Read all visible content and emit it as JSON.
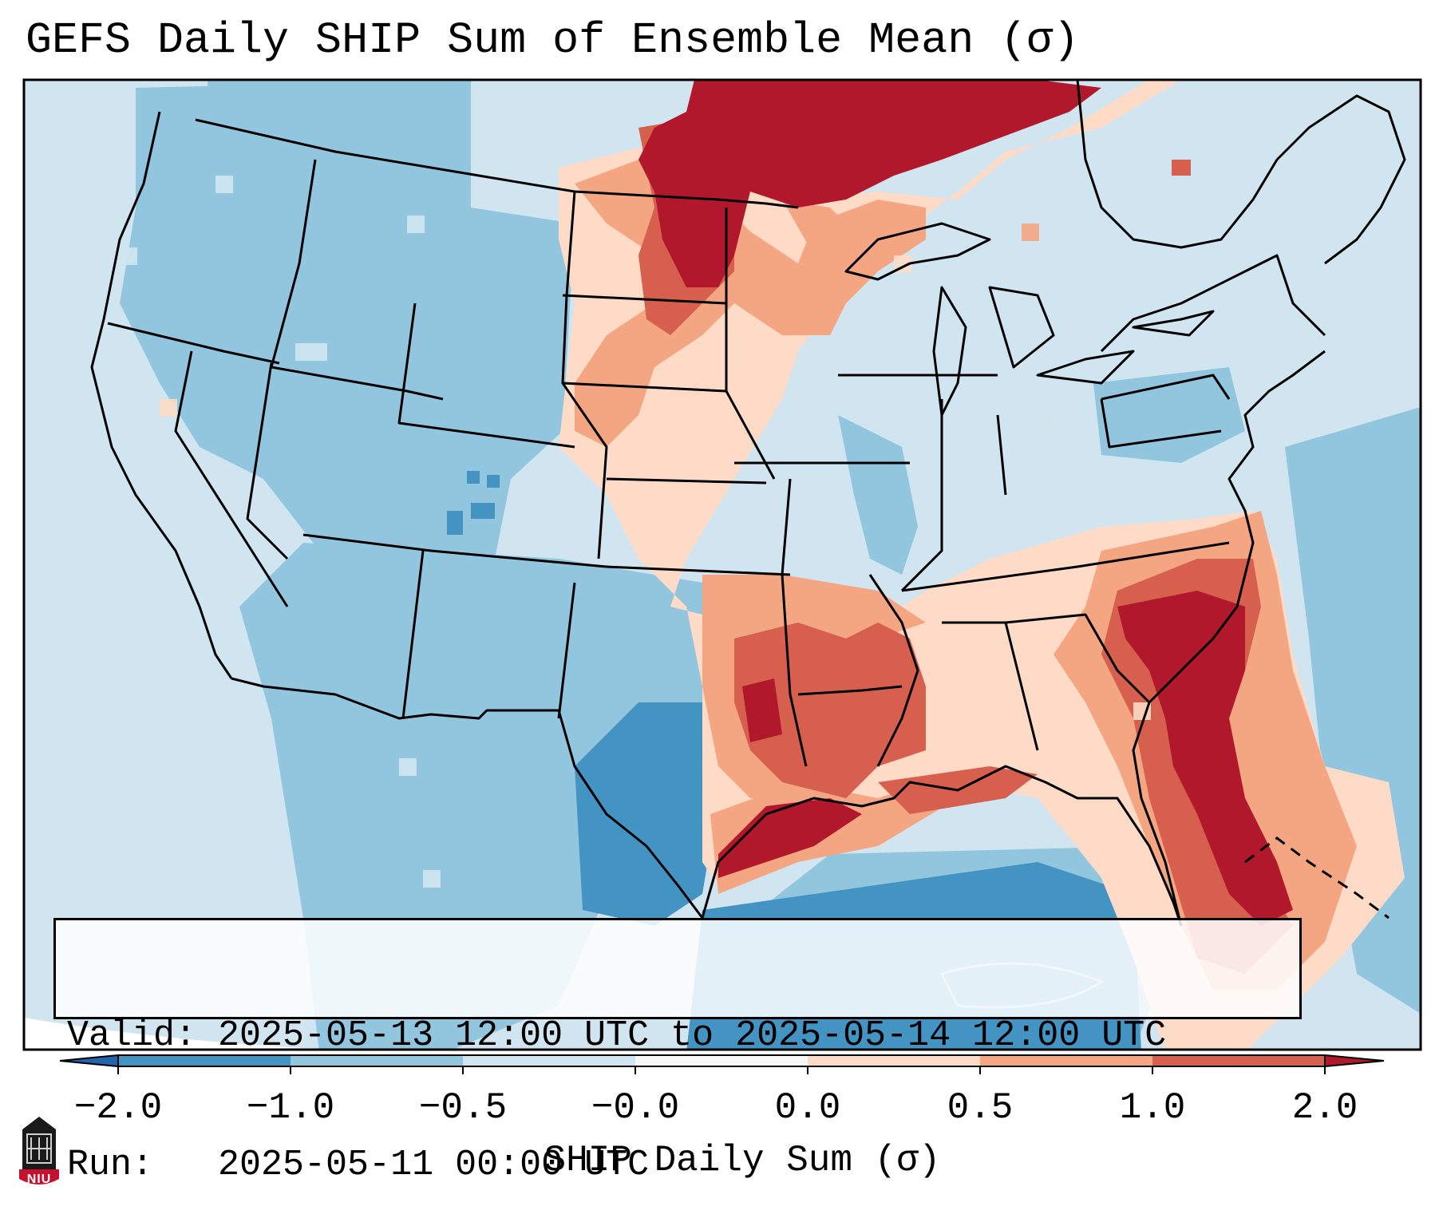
{
  "title": "GEFS Daily SHIP Sum of Ensemble Mean (σ)",
  "info": {
    "valid_line": "Valid: 2025-05-13 12:00 UTC to 2025-05-14 12:00 UTC",
    "run_line": "Run:   2025-05-11 00:00 UTC"
  },
  "colorbar": {
    "label": "SHIP Daily Sum (σ)",
    "tick_labels": [
      "−2.0",
      "−1.0",
      "−0.5",
      "−0.0",
      "0.0",
      "0.5",
      "1.0",
      "2.0"
    ],
    "bins": [
      {
        "range": "< -2.0",
        "color": "#2166ac"
      },
      {
        "range": "-2.0 to -1.0",
        "color": "#4393c3"
      },
      {
        "range": "-1.0 to -0.5",
        "color": "#92c5de"
      },
      {
        "range": "-0.5 to -0.0",
        "color": "#d1e5f0"
      },
      {
        "range": "-0.0 to 0.0",
        "color": "#f7f7f7"
      },
      {
        "range": "0.0 to 0.5",
        "color": "#fddbc7"
      },
      {
        "range": "0.5 to 1.0",
        "color": "#f4a582"
      },
      {
        "range": "1.0 to 2.0",
        "color": "#d6604d"
      },
      {
        "range": "> 2.0",
        "color": "#b2182b"
      }
    ]
  },
  "map": {
    "region": "CONUS",
    "background_color": "#d1e5f0",
    "border_color": "#000000"
  },
  "logo": {
    "text": "NIU",
    "color": "#c8102e"
  }
}
